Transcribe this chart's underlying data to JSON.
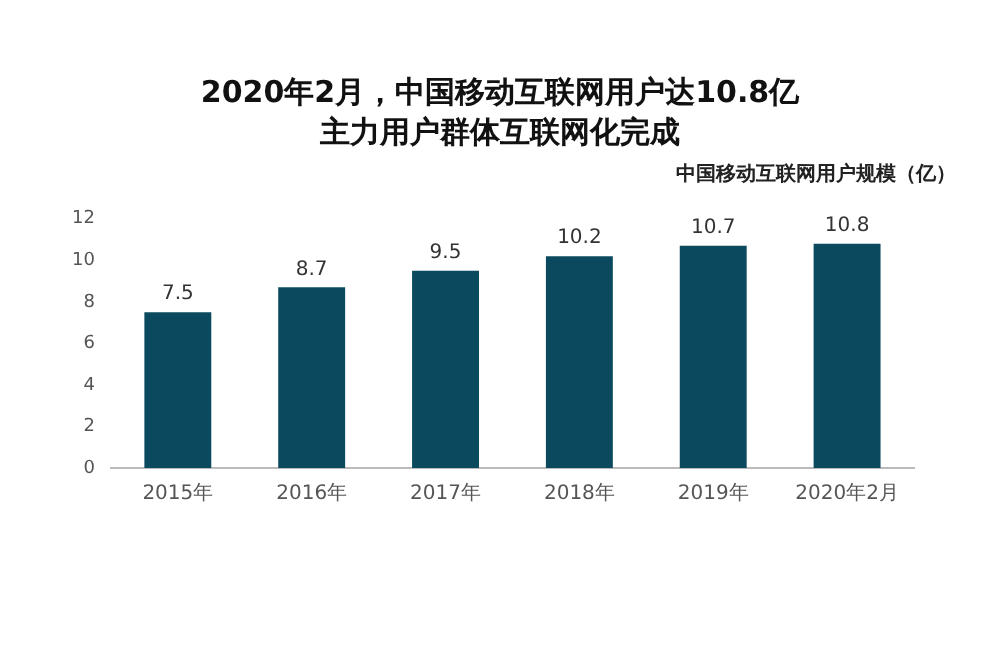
{
  "chart_data": {
    "type": "bar",
    "title": "2020年2月，中国移动互联网用户达10.8亿",
    "subtitle": "主力用户群体互联网化完成",
    "annotations": [
      "中国移动互联网用户规模（亿）"
    ],
    "categories": [
      "2015年",
      "2016年",
      "2017年",
      "2018年",
      "2019年",
      "2020年2月"
    ],
    "values": [
      7.5,
      8.7,
      9.5,
      10.2,
      10.7,
      10.8
    ],
    "color": "#0b4a5e",
    "data_labels": true,
    "ylim": [
      0,
      12
    ],
    "yticks": [
      0,
      2,
      4,
      6,
      8,
      10,
      12
    ],
    "grid": false,
    "legend": false
  }
}
